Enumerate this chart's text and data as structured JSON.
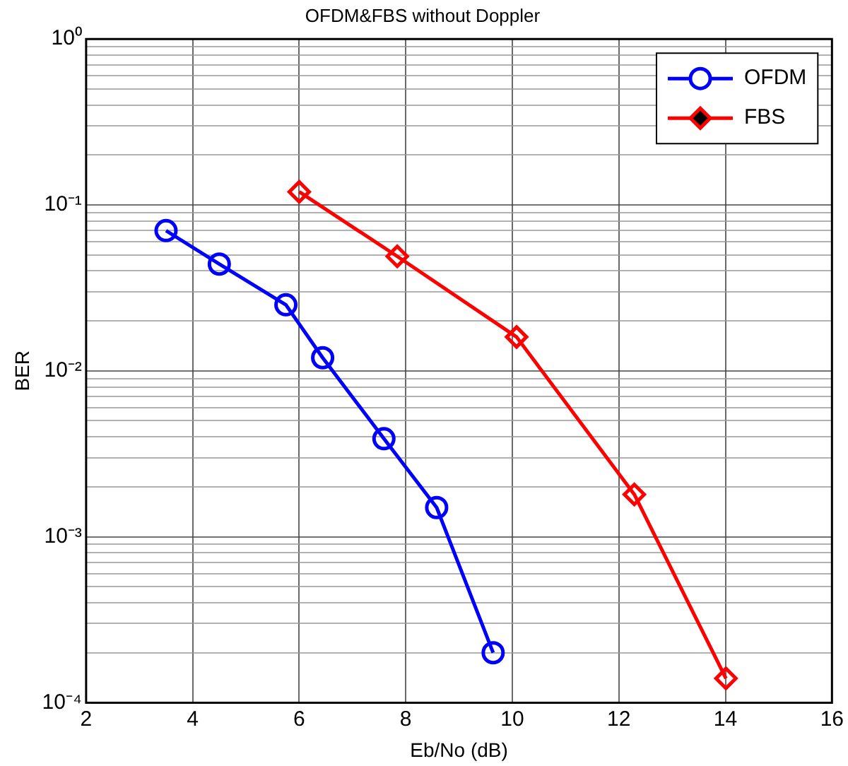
{
  "chart_data": {
    "type": "line",
    "title": "OFDM&FBS without Doppler",
    "xlabel": "Eb/No (dB)",
    "ylabel": "BER",
    "log": "y",
    "grid": true,
    "legend": "top right",
    "line_style": "solid",
    "xlim": [
      2,
      16
    ],
    "xticks": [
      2,
      4,
      6,
      8,
      10,
      12,
      14,
      16
    ],
    "ylim": [
      0.0001,
      1
    ],
    "yticks": [
      {
        "value": 0.0001,
        "label": "10⁻⁴"
      },
      {
        "value": 0.0002,
        "label": null
      },
      {
        "value": 0.0003,
        "label": null
      },
      {
        "value": 0.0004,
        "label": null
      },
      {
        "value": 0.0005,
        "label": null
      },
      {
        "value": 0.0006,
        "label": null
      },
      {
        "value": 0.0007,
        "label": null
      },
      {
        "value": 0.0008,
        "label": null
      },
      {
        "value": 0.0009,
        "label": null
      },
      {
        "value": 0.001,
        "label": "10⁻³"
      },
      {
        "value": 0.002,
        "label": null
      },
      {
        "value": 0.003,
        "label": null
      },
      {
        "value": 0.004,
        "label": null
      },
      {
        "value": 0.005,
        "label": null
      },
      {
        "value": 0.006,
        "label": null
      },
      {
        "value": 0.007,
        "label": null
      },
      {
        "value": 0.008,
        "label": null
      },
      {
        "value": 0.009,
        "label": null
      },
      {
        "value": 0.01,
        "label": "10⁻²"
      },
      {
        "value": 0.02,
        "label": null
      },
      {
        "value": 0.03,
        "label": null
      },
      {
        "value": 0.04,
        "label": null
      },
      {
        "value": 0.05,
        "label": null
      },
      {
        "value": 0.06,
        "label": null
      },
      {
        "value": 0.07,
        "label": null
      },
      {
        "value": 0.08,
        "label": null
      },
      {
        "value": 0.09,
        "label": null
      },
      {
        "value": 0.1,
        "label": "10⁻¹"
      },
      {
        "value": 0.2,
        "label": null
      },
      {
        "value": 0.3,
        "label": null
      },
      {
        "value": 0.4,
        "label": null
      },
      {
        "value": 0.5,
        "label": null
      },
      {
        "value": 0.6,
        "label": null
      },
      {
        "value": 0.7,
        "label": null
      },
      {
        "value": 0.8,
        "label": null
      },
      {
        "value": 0.9,
        "label": null
      },
      {
        "value": 1,
        "label": "10⁰"
      }
    ],
    "series": [
      {
        "name": "OFDM",
        "color": "#0000ff",
        "marker": "circle",
        "x": [
          3.5,
          4.5,
          5.75,
          6.44,
          7.59,
          8.58,
          9.64
        ],
        "values": [
          0.07,
          0.044,
          0.025,
          0.012,
          0.0039,
          0.0015,
          0.0002
        ]
      },
      {
        "name": "FBS",
        "color": "#ff0000",
        "marker": "diamond",
        "x": [
          6.0,
          7.84,
          10.08,
          12.29,
          14.01
        ],
        "values": [
          0.12,
          0.049,
          0.016,
          0.0018,
          0.00014
        ]
      }
    ]
  }
}
